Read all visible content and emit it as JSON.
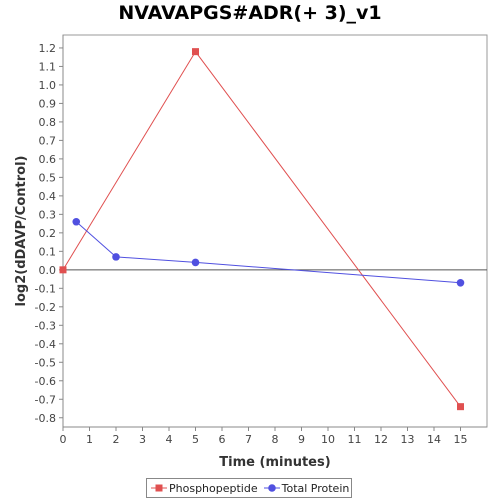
{
  "chart_data": {
    "type": "line",
    "title": "NVAVAPGS#ADR(+ 3)_v1",
    "xlabel": "Time (minutes)",
    "ylabel": "log2(dDAVP/Control)",
    "xlim": [
      0,
      16
    ],
    "ylim": [
      -0.85,
      1.27
    ],
    "xticks": [
      0,
      1,
      2,
      3,
      4,
      5,
      6,
      7,
      8,
      9,
      10,
      11,
      12,
      13,
      14,
      15
    ],
    "yticks": [
      -0.8,
      -0.7,
      -0.6,
      -0.5,
      -0.4,
      -0.3,
      -0.2,
      -0.1,
      0.0,
      0.1,
      0.2,
      0.3,
      0.4,
      0.5,
      0.6,
      0.7,
      0.8,
      0.9,
      1.0,
      1.1,
      1.2
    ],
    "zero_line": true,
    "grid": false,
    "legend_position": "bottom-center",
    "series": [
      {
        "name": "Phosphopeptide",
        "color": "#e05050",
        "marker": "square",
        "points": [
          {
            "x": 0,
            "y": 0.0
          },
          {
            "x": 5,
            "y": 1.18
          },
          {
            "x": 15,
            "y": -0.74
          }
        ]
      },
      {
        "name": "Total Protein",
        "color": "#5050e0",
        "marker": "circle",
        "points": [
          {
            "x": 0.5,
            "y": 0.26
          },
          {
            "x": 2,
            "y": 0.07
          },
          {
            "x": 5,
            "y": 0.04
          },
          {
            "x": 15,
            "y": -0.07
          }
        ]
      }
    ]
  }
}
